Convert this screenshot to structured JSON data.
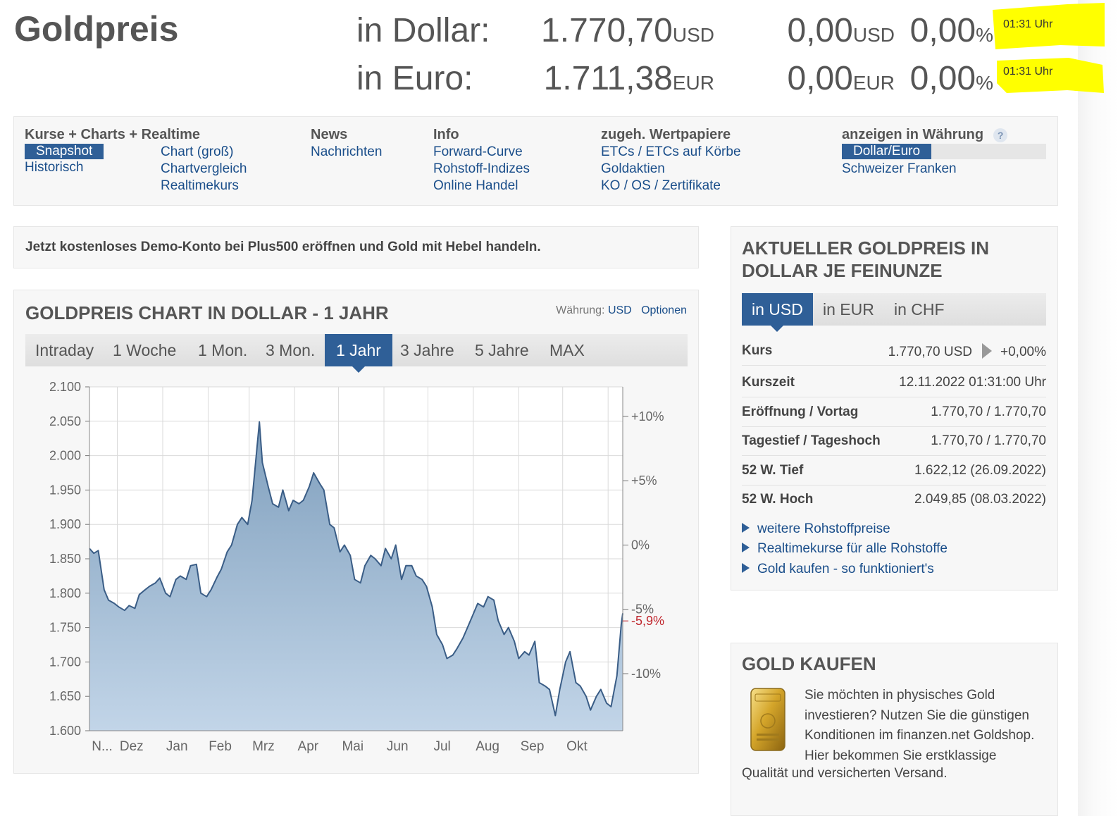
{
  "header": {
    "site_title": "Goldpreis",
    "rows": [
      {
        "label": "in Dollar:",
        "price": "1.770,70",
        "price_unit": "USD",
        "change": "0,00",
        "change_unit": "USD",
        "pct": "0,00",
        "pct_unit": "%",
        "time": "01:31 Uhr"
      },
      {
        "label": "in Euro:",
        "price": "1.711,38",
        "price_unit": "EUR",
        "change": "0,00",
        "change_unit": "EUR",
        "pct": "0,00",
        "pct_unit": "%",
        "time": "01:31 Uhr"
      }
    ],
    "highlight_color": "#ffff00"
  },
  "nav": {
    "kurse": {
      "heading": "Kurse + Charts + Realtime",
      "items": [
        "Snapshot",
        "Historisch",
        "Chart (groß)",
        "Chartvergleich",
        "Realtimekurs"
      ],
      "active": "Snapshot"
    },
    "news": {
      "heading": "News",
      "items": [
        "Nachrichten"
      ]
    },
    "info": {
      "heading": "Info",
      "items": [
        "Forward-Curve",
        "Rohstoff-Indizes",
        "Online Handel"
      ]
    },
    "wertpapiere": {
      "heading": "zugeh. Wertpapiere",
      "items": [
        "ETCs / ETCs auf Körbe",
        "Goldaktien",
        "KO / OS / Zertifikate"
      ]
    },
    "waehrung": {
      "heading": "anzeigen in Währung",
      "help": "?",
      "items": [
        "Dollar/Euro",
        "Schweizer Franken"
      ],
      "active": "Dollar/Euro"
    }
  },
  "promo": {
    "text": "Jetzt kostenloses Demo-Konto bei Plus500 eröffnen und Gold mit Hebel handeln."
  },
  "chart_panel": {
    "title": "GOLDPREIS CHART IN DOLLAR - 1 JAHR",
    "currency_label": "Währung:",
    "currency_value": "USD",
    "options": "Optionen",
    "tabs": [
      "Intraday",
      "1 Woche",
      "1 Mon.",
      "3 Mon.",
      "1 Jahr",
      "3 Jahre",
      "5 Jahre",
      "MAX"
    ],
    "active_tab": "1 Jahr"
  },
  "chart_data": {
    "type": "area",
    "x_labels": [
      "N...",
      "Dez",
      "Jan",
      "Feb",
      "Mrz",
      "Apr",
      "Mai",
      "Jun",
      "Jul",
      "Aug",
      "Sep",
      "Okt"
    ],
    "y_ticks": [
      "2.100",
      "2.050",
      "2.000",
      "1.950",
      "1.900",
      "1.850",
      "1.800",
      "1.750",
      "1.700",
      "1.650",
      "1.600"
    ],
    "ylim": [
      1600,
      2100
    ],
    "right_ticks": [
      "+10%",
      "+5%",
      "0%",
      "-5%",
      "-10%"
    ],
    "right_tick_values": [
      10,
      5,
      0,
      -5,
      -10
    ],
    "right_reference": 1870,
    "current_pct_label": "-5,9%",
    "current_pct_value": -5.9,
    "current_pct_color": "#c0262d",
    "line_color": "#3a5d86",
    "fill_top": "#7f9fbd",
    "fill_bottom": "#c2d5e8",
    "grid": true,
    "x": [
      "2021-11-12",
      "2021-11-15",
      "2021-11-18",
      "2021-11-22",
      "2021-11-25",
      "2021-11-29",
      "2021-12-02",
      "2021-12-06",
      "2021-12-09",
      "2021-12-13",
      "2021-12-16",
      "2021-12-20",
      "2021-12-23",
      "2021-12-27",
      "2021-12-30",
      "2022-01-03",
      "2022-01-06",
      "2022-01-10",
      "2022-01-13",
      "2022-01-17",
      "2022-01-20",
      "2022-01-24",
      "2022-01-27",
      "2022-01-31",
      "2022-02-03",
      "2022-02-07",
      "2022-02-10",
      "2022-02-14",
      "2022-02-17",
      "2022-02-21",
      "2022-02-24",
      "2022-02-28",
      "2022-03-03",
      "2022-03-08",
      "2022-03-10",
      "2022-03-14",
      "2022-03-17",
      "2022-03-21",
      "2022-03-24",
      "2022-03-28",
      "2022-03-31",
      "2022-04-04",
      "2022-04-07",
      "2022-04-11",
      "2022-04-14",
      "2022-04-18",
      "2022-04-21",
      "2022-04-25",
      "2022-04-28",
      "2022-05-02",
      "2022-05-05",
      "2022-05-09",
      "2022-05-12",
      "2022-05-16",
      "2022-05-19",
      "2022-05-23",
      "2022-05-26",
      "2022-05-30",
      "2022-06-02",
      "2022-06-06",
      "2022-06-09",
      "2022-06-13",
      "2022-06-16",
      "2022-06-20",
      "2022-06-23",
      "2022-06-27",
      "2022-06-30",
      "2022-07-04",
      "2022-07-07",
      "2022-07-11",
      "2022-07-14",
      "2022-07-18",
      "2022-07-21",
      "2022-07-25",
      "2022-07-28",
      "2022-08-01",
      "2022-08-04",
      "2022-08-08",
      "2022-08-11",
      "2022-08-15",
      "2022-08-18",
      "2022-08-22",
      "2022-08-25",
      "2022-08-29",
      "2022-09-01",
      "2022-09-05",
      "2022-09-08",
      "2022-09-12",
      "2022-09-15",
      "2022-09-19",
      "2022-09-22",
      "2022-09-26",
      "2022-09-29",
      "2022-10-03",
      "2022-10-06",
      "2022-10-10",
      "2022-10-13",
      "2022-10-17",
      "2022-10-20",
      "2022-10-24",
      "2022-10-27",
      "2022-10-31",
      "2022-11-03",
      "2022-11-07",
      "2022-11-10",
      "2022-11-11"
    ],
    "values": [
      1865,
      1858,
      1862,
      1805,
      1790,
      1785,
      1780,
      1775,
      1782,
      1778,
      1798,
      1805,
      1810,
      1815,
      1822,
      1800,
      1795,
      1820,
      1825,
      1820,
      1840,
      1842,
      1800,
      1795,
      1805,
      1823,
      1835,
      1860,
      1870,
      1900,
      1910,
      1900,
      1935,
      2049,
      1990,
      1955,
      1930,
      1925,
      1950,
      1920,
      1935,
      1930,
      1935,
      1955,
      1975,
      1960,
      1950,
      1900,
      1895,
      1860,
      1870,
      1855,
      1820,
      1815,
      1840,
      1855,
      1850,
      1840,
      1865,
      1850,
      1870,
      1820,
      1840,
      1840,
      1825,
      1820,
      1810,
      1780,
      1740,
      1725,
      1705,
      1710,
      1720,
      1735,
      1750,
      1770,
      1785,
      1780,
      1795,
      1790,
      1760,
      1740,
      1750,
      1730,
      1705,
      1715,
      1710,
      1730,
      1670,
      1665,
      1660,
      1622,
      1660,
      1700,
      1715,
      1670,
      1665,
      1650,
      1630,
      1650,
      1660,
      1640,
      1635,
      1680,
      1755,
      1770.7
    ]
  },
  "info": {
    "title": "AKTUELLER GOLDPREIS IN DOLLAR JE FEINUNZE",
    "currency_tabs": [
      "in USD",
      "in EUR",
      "in CHF"
    ],
    "active_tab": "in USD",
    "rows": [
      {
        "label": "Kurs",
        "value": "1.770,70 USD",
        "extra": "+0,00%"
      },
      {
        "label": "Kurszeit",
        "value": "12.11.2022 01:31:00 Uhr"
      },
      {
        "label": "Eröffnung / Vortag",
        "value": "1.770,70 / 1.770,70"
      },
      {
        "label": "Tagestief / Tageshoch",
        "value": "1.770,70 / 1.770,70"
      },
      {
        "label": "52 W. Tief",
        "value": "1.622,12 (26.09.2022)"
      },
      {
        "label": "52 W. Hoch",
        "value": "2.049,85 (08.03.2022)"
      }
    ],
    "links": [
      "weitere Rohstoffpreise",
      "Realtimekurse für alle Rohstoffe",
      "Gold kaufen - so funktioniert's"
    ]
  },
  "gold": {
    "title": "GOLD KAUFEN",
    "text": "Sie möchten in physisches Gold investieren? Nutzen Sie die günstigen Konditionen im finanzen.net Goldshop. Hier bekommen Sie erstklassige",
    "text2": "Qualität und versicherten Versand.",
    "image_icon": "gold-bar-icon"
  }
}
